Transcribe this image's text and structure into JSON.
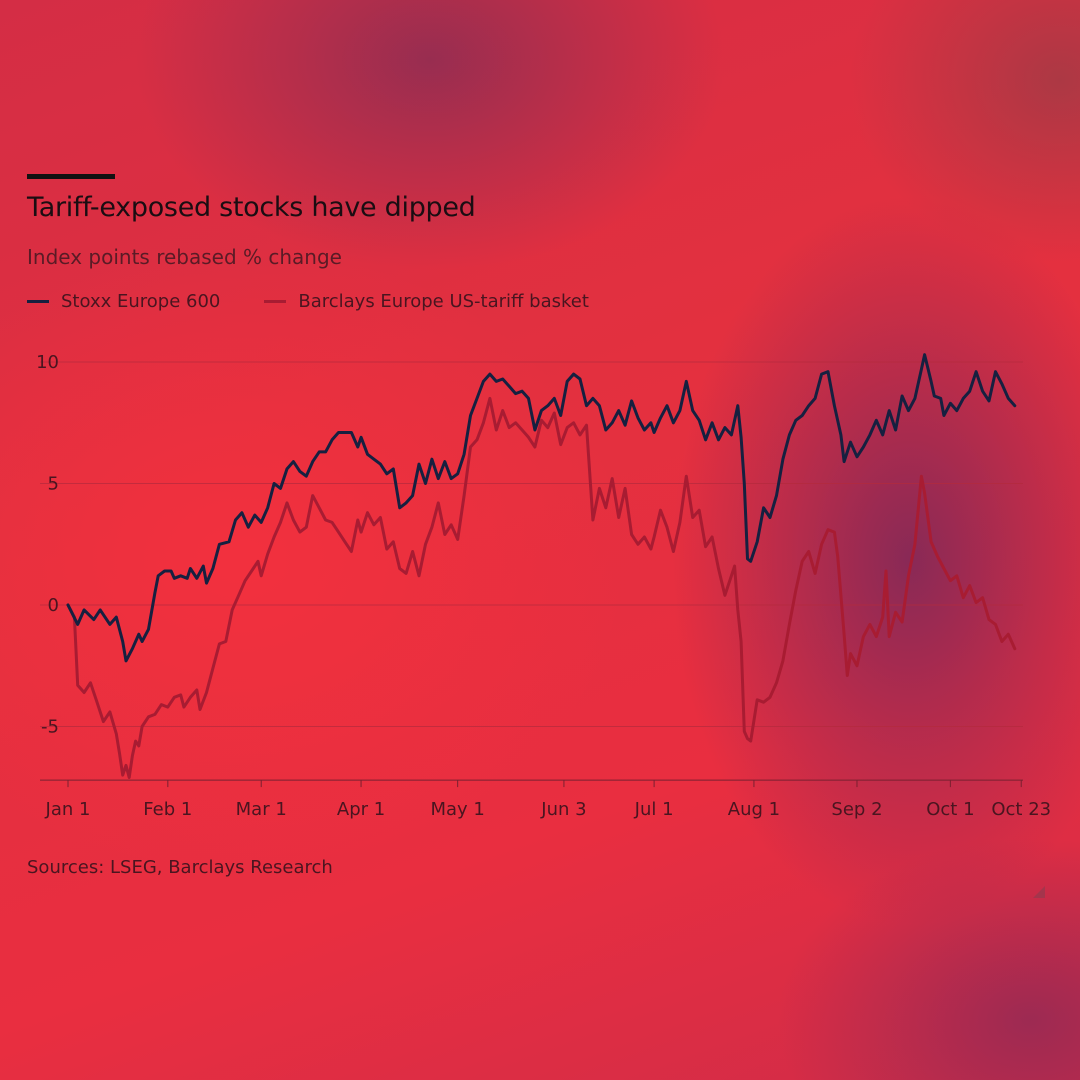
{
  "colors": {
    "stoxx": "#162040",
    "barclays": "#a81c32",
    "grid": "#b42a3d",
    "axis": "#7a2030"
  },
  "chart_data": {
    "type": "line",
    "title": "Tariff-exposed stocks have dipped",
    "subtitle": "Index points rebased % change",
    "xlabel": "",
    "ylabel": "",
    "ylim": [
      -7,
      10.3
    ],
    "yticks": [
      10,
      5,
      0,
      -5
    ],
    "xlim": [
      0,
      295
    ],
    "xticks": [
      {
        "label": "Jan 1",
        "day": 0
      },
      {
        "label": "Feb 1",
        "day": 31
      },
      {
        "label": "Mar 1",
        "day": 60
      },
      {
        "label": "Apr 1",
        "day": 91
      },
      {
        "label": "May 1",
        "day": 121
      },
      {
        "label": "Jun 3",
        "day": 154
      },
      {
        "label": "Jul 1",
        "day": 182
      },
      {
        "label": "Aug 1",
        "day": 213
      },
      {
        "label": "Sep 2",
        "day": 245
      },
      {
        "label": "Oct 1",
        "day": 274
      },
      {
        "label": "Oct 23",
        "day": 296
      }
    ],
    "series": [
      {
        "name": "Stoxx Europe 600",
        "points": [
          [
            0,
            0
          ],
          [
            3,
            -0.8
          ],
          [
            5,
            -0.2
          ],
          [
            8,
            -0.6
          ],
          [
            10,
            -0.2
          ],
          [
            13,
            -0.8
          ],
          [
            15,
            -0.5
          ],
          [
            17,
            -1.5
          ],
          [
            18,
            -2.3
          ],
          [
            20,
            -1.8
          ],
          [
            22,
            -1.2
          ],
          [
            23,
            -1.5
          ],
          [
            25,
            -1.0
          ],
          [
            27,
            0.5
          ],
          [
            28,
            1.2
          ],
          [
            30,
            1.4
          ],
          [
            32,
            1.4
          ],
          [
            33,
            1.1
          ],
          [
            35,
            1.2
          ],
          [
            37,
            1.1
          ],
          [
            38,
            1.5
          ],
          [
            40,
            1.1
          ],
          [
            42,
            1.6
          ],
          [
            43,
            0.9
          ],
          [
            45,
            1.5
          ],
          [
            47,
            2.5
          ],
          [
            50,
            2.6
          ],
          [
            52,
            3.5
          ],
          [
            54,
            3.8
          ],
          [
            56,
            3.2
          ],
          [
            58,
            3.7
          ],
          [
            60,
            3.4
          ],
          [
            62,
            4.0
          ],
          [
            64,
            5.0
          ],
          [
            66,
            4.8
          ],
          [
            68,
            5.6
          ],
          [
            70,
            5.9
          ],
          [
            72,
            5.5
          ],
          [
            74,
            5.3
          ],
          [
            76,
            5.9
          ],
          [
            78,
            6.3
          ],
          [
            80,
            6.3
          ],
          [
            82,
            6.8
          ],
          [
            84,
            7.1
          ],
          [
            86,
            7.1
          ],
          [
            88,
            7.1
          ],
          [
            90,
            6.5
          ],
          [
            91,
            6.9
          ],
          [
            93,
            6.2
          ],
          [
            95,
            6.0
          ],
          [
            97,
            5.8
          ],
          [
            99,
            5.4
          ],
          [
            101,
            5.6
          ],
          [
            103,
            4.0
          ],
          [
            105,
            4.2
          ],
          [
            107,
            4.5
          ],
          [
            109,
            5.8
          ],
          [
            111,
            5.0
          ],
          [
            113,
            6.0
          ],
          [
            115,
            5.2
          ],
          [
            117,
            5.9
          ],
          [
            119,
            5.2
          ],
          [
            121,
            5.4
          ],
          [
            123,
            6.2
          ],
          [
            125,
            7.8
          ],
          [
            127,
            8.5
          ],
          [
            129,
            9.2
          ],
          [
            131,
            9.5
          ],
          [
            133,
            9.2
          ],
          [
            135,
            9.3
          ],
          [
            137,
            9.0
          ],
          [
            139,
            8.7
          ],
          [
            141,
            8.8
          ],
          [
            143,
            8.5
          ],
          [
            145,
            7.2
          ],
          [
            147,
            8.0
          ],
          [
            149,
            8.2
          ],
          [
            151,
            8.5
          ],
          [
            153,
            7.8
          ],
          [
            155,
            9.2
          ],
          [
            157,
            9.5
          ],
          [
            159,
            9.3
          ],
          [
            161,
            8.2
          ],
          [
            163,
            8.5
          ],
          [
            165,
            8.2
          ],
          [
            167,
            7.2
          ],
          [
            169,
            7.5
          ],
          [
            171,
            8.0
          ],
          [
            173,
            7.4
          ],
          [
            175,
            8.4
          ],
          [
            177,
            7.7
          ],
          [
            179,
            7.2
          ],
          [
            181,
            7.5
          ],
          [
            182,
            7.1
          ],
          [
            184,
            7.7
          ],
          [
            186,
            8.2
          ],
          [
            188,
            7.5
          ],
          [
            190,
            8.0
          ],
          [
            192,
            9.2
          ],
          [
            194,
            8.0
          ],
          [
            196,
            7.6
          ],
          [
            198,
            6.8
          ],
          [
            200,
            7.5
          ],
          [
            202,
            6.8
          ],
          [
            204,
            7.3
          ],
          [
            206,
            7.0
          ],
          [
            208,
            8.2
          ],
          [
            209,
            6.9
          ],
          [
            210,
            5.0
          ],
          [
            211,
            1.9
          ],
          [
            212,
            1.8
          ],
          [
            214,
            2.6
          ],
          [
            216,
            4.0
          ],
          [
            218,
            3.6
          ],
          [
            220,
            4.5
          ],
          [
            222,
            6.0
          ],
          [
            224,
            7.0
          ],
          [
            226,
            7.6
          ],
          [
            228,
            7.8
          ],
          [
            230,
            8.2
          ],
          [
            232,
            8.5
          ],
          [
            234,
            9.5
          ],
          [
            236,
            9.6
          ],
          [
            238,
            8.2
          ],
          [
            240,
            7.0
          ],
          [
            241,
            5.9
          ],
          [
            243,
            6.7
          ],
          [
            245,
            6.1
          ],
          [
            247,
            6.5
          ],
          [
            249,
            7.0
          ],
          [
            251,
            7.6
          ],
          [
            253,
            7.0
          ],
          [
            255,
            8.0
          ],
          [
            257,
            7.2
          ],
          [
            259,
            8.6
          ],
          [
            261,
            8.0
          ],
          [
            263,
            8.5
          ],
          [
            265,
            9.7
          ],
          [
            266,
            10.3
          ],
          [
            268,
            9.2
          ],
          [
            269,
            8.6
          ],
          [
            271,
            8.5
          ],
          [
            272,
            7.8
          ],
          [
            274,
            8.3
          ],
          [
            276,
            8.0
          ],
          [
            278,
            8.5
          ],
          [
            280,
            8.8
          ],
          [
            282,
            9.6
          ],
          [
            284,
            8.8
          ],
          [
            286,
            8.4
          ],
          [
            288,
            9.6
          ],
          [
            290,
            9.1
          ],
          [
            292,
            8.5
          ],
          [
            294,
            8.2
          ]
        ]
      },
      {
        "name": "Barclays Europe US-tariff basket",
        "points": [
          [
            0,
            0
          ],
          [
            2,
            -0.5
          ],
          [
            3,
            -3.3
          ],
          [
            5,
            -3.6
          ],
          [
            7,
            -3.2
          ],
          [
            9,
            -4.0
          ],
          [
            11,
            -4.8
          ],
          [
            13,
            -4.4
          ],
          [
            15,
            -5.3
          ],
          [
            16,
            -6.1
          ],
          [
            17,
            -7.0
          ],
          [
            18,
            -6.6
          ],
          [
            19,
            -7.1
          ],
          [
            20,
            -6.2
          ],
          [
            21,
            -5.6
          ],
          [
            22,
            -5.8
          ],
          [
            23,
            -5.0
          ],
          [
            25,
            -4.6
          ],
          [
            27,
            -4.5
          ],
          [
            29,
            -4.1
          ],
          [
            31,
            -4.2
          ],
          [
            33,
            -3.8
          ],
          [
            35,
            -3.7
          ],
          [
            36,
            -4.2
          ],
          [
            38,
            -3.8
          ],
          [
            40,
            -3.5
          ],
          [
            41,
            -4.3
          ],
          [
            43,
            -3.6
          ],
          [
            45,
            -2.6
          ],
          [
            47,
            -1.6
          ],
          [
            49,
            -1.5
          ],
          [
            51,
            -0.2
          ],
          [
            53,
            0.4
          ],
          [
            55,
            1.0
          ],
          [
            57,
            1.4
          ],
          [
            59,
            1.8
          ],
          [
            60,
            1.2
          ],
          [
            62,
            2.1
          ],
          [
            64,
            2.8
          ],
          [
            66,
            3.4
          ],
          [
            68,
            4.2
          ],
          [
            70,
            3.5
          ],
          [
            72,
            3.0
          ],
          [
            74,
            3.2
          ],
          [
            76,
            4.5
          ],
          [
            78,
            4.0
          ],
          [
            80,
            3.5
          ],
          [
            82,
            3.4
          ],
          [
            84,
            3.0
          ],
          [
            86,
            2.6
          ],
          [
            88,
            2.2
          ],
          [
            90,
            3.5
          ],
          [
            91,
            3.0
          ],
          [
            93,
            3.8
          ],
          [
            95,
            3.3
          ],
          [
            97,
            3.6
          ],
          [
            99,
            2.3
          ],
          [
            101,
            2.6
          ],
          [
            103,
            1.5
          ],
          [
            105,
            1.3
          ],
          [
            107,
            2.2
          ],
          [
            109,
            1.2
          ],
          [
            111,
            2.5
          ],
          [
            113,
            3.2
          ],
          [
            115,
            4.2
          ],
          [
            117,
            2.9
          ],
          [
            119,
            3.3
          ],
          [
            121,
            2.7
          ],
          [
            123,
            4.5
          ],
          [
            125,
            6.5
          ],
          [
            127,
            6.8
          ],
          [
            129,
            7.5
          ],
          [
            131,
            8.5
          ],
          [
            133,
            7.2
          ],
          [
            135,
            8.0
          ],
          [
            137,
            7.3
          ],
          [
            139,
            7.5
          ],
          [
            141,
            7.2
          ],
          [
            143,
            6.9
          ],
          [
            145,
            6.5
          ],
          [
            147,
            7.6
          ],
          [
            149,
            7.3
          ],
          [
            151,
            7.9
          ],
          [
            153,
            6.6
          ],
          [
            155,
            7.3
          ],
          [
            157,
            7.5
          ],
          [
            159,
            7.0
          ],
          [
            161,
            7.4
          ],
          [
            163,
            3.5
          ],
          [
            165,
            4.8
          ],
          [
            167,
            4.0
          ],
          [
            169,
            5.2
          ],
          [
            171,
            3.6
          ],
          [
            173,
            4.8
          ],
          [
            175,
            2.9
          ],
          [
            177,
            2.5
          ],
          [
            179,
            2.8
          ],
          [
            181,
            2.3
          ],
          [
            182,
            2.8
          ],
          [
            184,
            3.9
          ],
          [
            186,
            3.2
          ],
          [
            188,
            2.2
          ],
          [
            190,
            3.4
          ],
          [
            192,
            5.3
          ],
          [
            194,
            3.6
          ],
          [
            196,
            3.9
          ],
          [
            198,
            2.4
          ],
          [
            200,
            2.8
          ],
          [
            202,
            1.5
          ],
          [
            204,
            0.4
          ],
          [
            206,
            1.2
          ],
          [
            207,
            1.6
          ],
          [
            208,
            -0.2
          ],
          [
            209,
            -1.5
          ],
          [
            210,
            -5.2
          ],
          [
            211,
            -5.5
          ],
          [
            212,
            -5.6
          ],
          [
            214,
            -3.9
          ],
          [
            216,
            -4.0
          ],
          [
            218,
            -3.8
          ],
          [
            220,
            -3.2
          ],
          [
            222,
            -2.3
          ],
          [
            224,
            -0.8
          ],
          [
            226,
            0.6
          ],
          [
            228,
            1.8
          ],
          [
            230,
            2.2
          ],
          [
            232,
            1.3
          ],
          [
            234,
            2.5
          ],
          [
            236,
            3.1
          ],
          [
            238,
            3.0
          ],
          [
            239,
            2.0
          ],
          [
            240,
            0.4
          ],
          [
            241,
            -1.2
          ],
          [
            242,
            -2.9
          ],
          [
            243,
            -2.0
          ],
          [
            245,
            -2.5
          ],
          [
            247,
            -1.3
          ],
          [
            249,
            -0.8
          ],
          [
            251,
            -1.3
          ],
          [
            253,
            -0.5
          ],
          [
            254,
            1.4
          ],
          [
            255,
            -1.3
          ],
          [
            257,
            -0.3
          ],
          [
            259,
            -0.7
          ],
          [
            261,
            1.2
          ],
          [
            263,
            2.5
          ],
          [
            265,
            5.3
          ],
          [
            266,
            4.6
          ],
          [
            268,
            2.6
          ],
          [
            270,
            2.0
          ],
          [
            272,
            1.5
          ],
          [
            274,
            1.0
          ],
          [
            276,
            1.2
          ],
          [
            278,
            0.3
          ],
          [
            280,
            0.8
          ],
          [
            282,
            0.1
          ],
          [
            284,
            0.3
          ],
          [
            286,
            -0.6
          ],
          [
            288,
            -0.8
          ],
          [
            290,
            -1.5
          ],
          [
            292,
            -1.2
          ],
          [
            294,
            -1.8
          ]
        ]
      }
    ]
  },
  "sources": "Sources: LSEG, Barclays Research"
}
